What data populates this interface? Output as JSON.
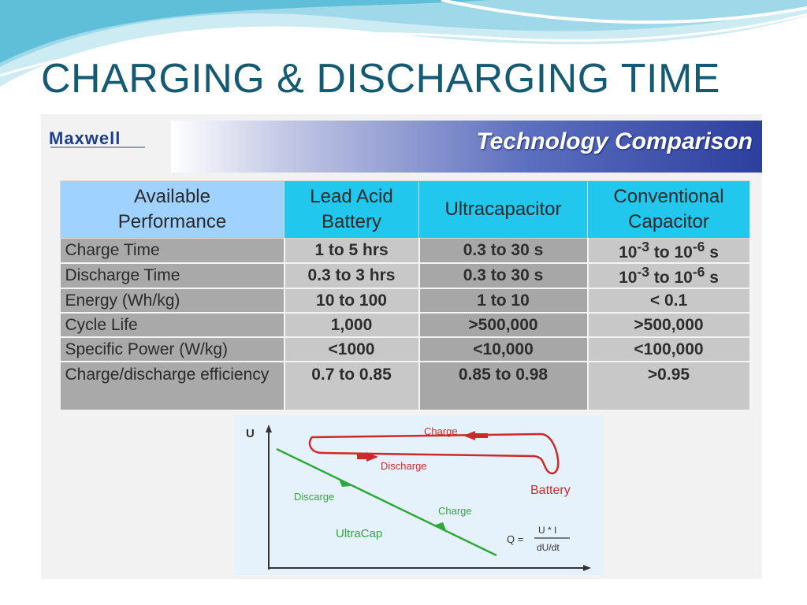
{
  "title": "CHARGING & DISCHARGING TIME",
  "logo": "Maxwell",
  "banner": "Technology Comparison",
  "table": {
    "headers": [
      [
        "Available",
        "Performance"
      ],
      [
        "Lead Acid",
        "Battery"
      ],
      [
        "Ultracapacitor"
      ],
      [
        "Conventional",
        "Capacitor"
      ]
    ],
    "rows": [
      {
        "label": "Charge Time",
        "lead": "1 to 5 hrs",
        "ultra": "0.3 to 30 s",
        "conv_base1": "10",
        "conv_exp1": "-3",
        "conv_mid": " to ",
        "conv_base2": "10",
        "conv_exp2": "-6",
        "conv_unit": " s"
      },
      {
        "label": "Discharge Time",
        "lead": "0.3 to 3 hrs",
        "ultra": "0.3 to 30 s",
        "conv_base1": "10",
        "conv_exp1": "-3",
        "conv_mid": " to ",
        "conv_base2": "10",
        "conv_exp2": "-6",
        "conv_unit": " s"
      },
      {
        "label": "Energy (Wh/kg)",
        "lead": "10 to 100",
        "ultra": "1 to 10",
        "conv": "< 0.1"
      },
      {
        "label": "Cycle Life",
        "lead": "1,000",
        "ultra": ">500,000",
        "conv": ">500,000"
      },
      {
        "label": "Specific Power (W/kg)",
        "lead": "<1000",
        "ultra": "<10,000",
        "conv": "<100,000"
      },
      {
        "label": "Charge/discharge efficiency",
        "lead": "0.7 to 0.85",
        "ultra": "0.85 to 0.98",
        "conv": ">0.95"
      }
    ]
  },
  "diagram": {
    "y_axis": "U",
    "battery_charge": "Charge",
    "battery_discharge": "Discharge",
    "battery_label": "Battery",
    "ultra_discharge": "Discarge",
    "ultra_charge": "Charge",
    "ultra_label": "UltraCap",
    "formula_lhs": "Q =",
    "formula_num": "U * I",
    "formula_den": "dU/dt",
    "colors": {
      "battery": "#cc2a2a",
      "ultracap": "#2fa83a"
    }
  }
}
